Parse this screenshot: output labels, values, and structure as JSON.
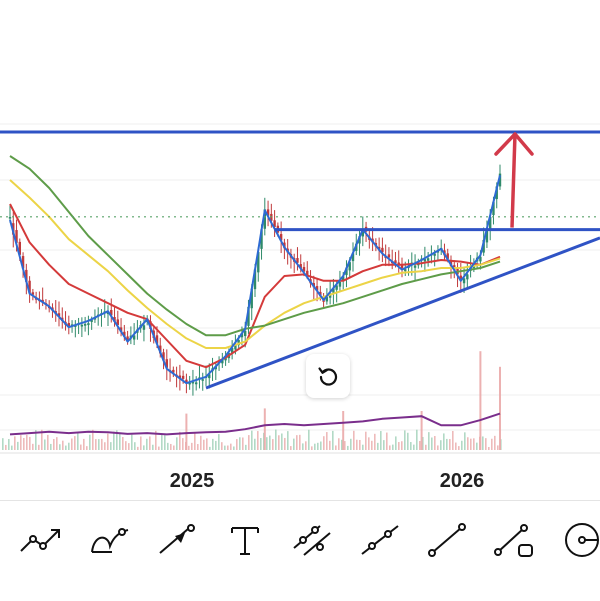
{
  "chart_data": {
    "type": "candlestick",
    "x_ticks": [
      "2025",
      "2026"
    ],
    "grid": true,
    "price_series": {
      "x": [
        "2024-01",
        "2024-02",
        "2024-03",
        "2024-04",
        "2024-05",
        "2024-06",
        "2024-07",
        "2024-08",
        "2024-09",
        "2024-10",
        "2024-11",
        "2024-12",
        "2025-01",
        "2025-02",
        "2025-03",
        "2025-04",
        "2025-05",
        "2025-06",
        "2025-07",
        "2025-08",
        "2025-09",
        "2025-10",
        "2025-11",
        "2025-12",
        "2026-01",
        "2026-02"
      ],
      "y": [
        110,
        64,
        56,
        43,
        47,
        53,
        34,
        48,
        17,
        8,
        12,
        25,
        42,
        116,
        93,
        77,
        60,
        75,
        104,
        89,
        79,
        85,
        92,
        72,
        88,
        138
      ]
    },
    "moving_averages": [
      {
        "color": "#d43a3a",
        "y": [
          120,
          96,
          82,
          70,
          64,
          58,
          52,
          48,
          35,
          22,
          18,
          24,
          32,
          62,
          75,
          76,
          72,
          72,
          78,
          82,
          82,
          83,
          85,
          84,
          82,
          87
        ]
      },
      {
        "color": "#ecd447",
        "y": [
          135,
          124,
          112,
          98,
          88,
          78,
          66,
          55,
          45,
          36,
          30,
          30,
          34,
          44,
          52,
          58,
          62,
          66,
          70,
          74,
          77,
          78,
          80,
          80,
          82,
          86
        ]
      },
      {
        "color": "#5e9c49",
        "y": [
          150,
          142,
          130,
          115,
          100,
          88,
          76,
          64,
          54,
          45,
          38,
          38,
          42,
          44,
          48,
          52,
          55,
          58,
          62,
          66,
          70,
          73,
          76,
          78,
          80,
          84
        ]
      }
    ],
    "volume_avg": [
      6,
      6.5,
      7,
      6.5,
      7,
      6.8,
      6.2,
      6.5,
      6,
      6.5,
      6.8,
      7,
      8,
      9.5,
      10,
      9.5,
      10,
      10.5,
      11,
      12,
      12.5,
      13,
      9.5,
      9.5,
      11.5,
      14
    ],
    "volume_spikes": [
      {
        "x": "2024-10",
        "v": 14
      },
      {
        "x": "2025-02",
        "v": 16
      },
      {
        "x": "2025-06",
        "v": 15
      },
      {
        "x": "2025-10",
        "v": 15
      },
      {
        "x": "2026-01",
        "v": 38
      },
      {
        "x": "2026-02",
        "v": 32
      }
    ],
    "drawings": {
      "resistance_line": {
        "x": [
          "2025-03",
          "2026-02"
        ],
        "y": [
          104,
          104
        ],
        "extends_right": true
      },
      "upper_line": {
        "y": 165
      },
      "trend_line": {
        "x": [
          "2024-11",
          "2026-02"
        ],
        "y": [
          5,
          75
        ],
        "extends_right": true
      },
      "dotted_line": {
        "y": 112
      },
      "target_arrow": {
        "x": "2026-02",
        "y": [
          104,
          165
        ]
      }
    },
    "colors": {
      "drawing_blue": "#2f53c5",
      "arrow_red": "#d23a4a",
      "candle_up": "#2f8a6a",
      "candle_down": "#c0393b",
      "volume_avg": "#7a2e8c",
      "price_line": "#2d6ad3",
      "dotted": "#5aa36a"
    }
  },
  "ui": {
    "reset_button_icon": "rotate-ccw-icon",
    "toolbar_icons": [
      "trend-angle-icon",
      "curve-icon",
      "arrow-icon",
      "text-icon",
      "parallel-channel-icon",
      "ray-icon",
      "line-segment-icon",
      "measure-icon",
      "circle-icon"
    ]
  }
}
